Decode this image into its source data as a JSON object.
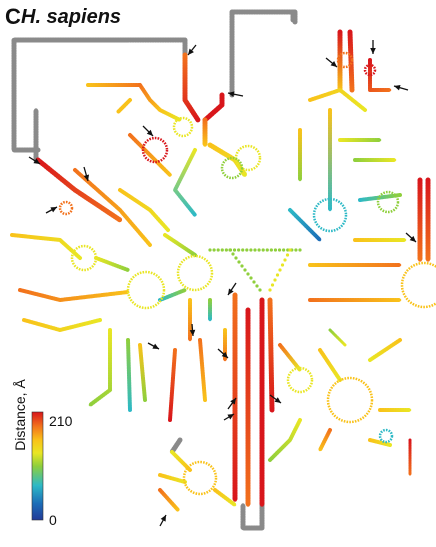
{
  "panel": {
    "letter": "C",
    "title": "H. sapiens"
  },
  "colorbar": {
    "title": "Distance, Å",
    "max_label": "210",
    "min_label": "0",
    "min_value": 0,
    "max_value": 210,
    "colors": [
      "#d8161b",
      "#f2711c",
      "#f9c21a",
      "#e9e624",
      "#8fcf3c",
      "#2db9c6",
      "#1c6cb7",
      "#223a98"
    ]
  },
  "colors": {
    "unmodeled": "#8a8a8a",
    "arrow": "#111111",
    "text": "#111111"
  }
}
